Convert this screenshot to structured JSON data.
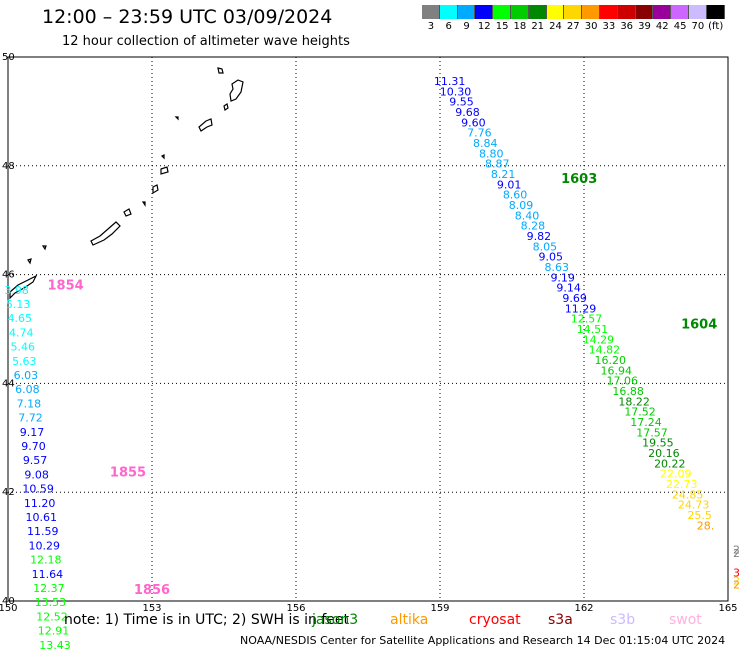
{
  "header": {
    "title": "12:00 – 23:59 UTC 03/09/2024",
    "subtitle": "12 hour collection of altimeter wave heights"
  },
  "colorbar": {
    "colors": [
      "#808080",
      "#00ffff",
      "#00aaff",
      "#0000ff",
      "#00ff00",
      "#00cc00",
      "#008800",
      "#ffff00",
      "#ffd700",
      "#ff9900",
      "#ff0000",
      "#cc0000",
      "#880000",
      "#990099",
      "#cc66ff",
      "#ccbbff",
      "#000000"
    ],
    "labels": [
      "3",
      "6",
      "9",
      "12",
      "15",
      "18",
      "21",
      "24",
      "27",
      "30",
      "33",
      "36",
      "39",
      "42",
      "45",
      "70",
      "(ft)"
    ]
  },
  "axes": {
    "lon_ticks": [
      "150",
      "153",
      "156",
      "159",
      "162",
      "165"
    ],
    "lat_ticks": [
      "50",
      "48",
      "46",
      "44",
      "42",
      "40"
    ]
  },
  "tracks": [
    {
      "lon_start": 159.2,
      "lat_start": 49.56,
      "lon_step": 0.124,
      "lat_step": -0.19,
      "values": [
        "11.31",
        "10.30",
        "9.55",
        "9.68",
        "9.60",
        "7.76",
        "8.84",
        "8.80",
        "8.87",
        "8.21",
        "9.01",
        "8.60",
        "8.09",
        "8.40",
        "8.28",
        "9.82",
        "8.05",
        "9.05",
        "8.63",
        "9.19",
        "9.14",
        "9.69",
        "11.29",
        "12.57",
        "14.51",
        "14.29",
        "14.82",
        "16.20",
        "16.94",
        "17.06",
        "16.88",
        "18.22",
        "17.52",
        "17.24",
        "17.57",
        "19.55",
        "20.16",
        "20.22",
        "22.09",
        "22.73",
        "24.85",
        "24.73",
        "25.5",
        "28."
      ]
    },
    {
      "lon_start": 150.18,
      "lat_start": 45.72,
      "lon_step": 0.032,
      "lat_step": -0.261,
      "values": [
        "3.98",
        "5.13",
        "4.65",
        "4.74",
        "5.46",
        "5.63",
        "6.03",
        "6.08",
        "7.18",
        "7.72",
        "9.17",
        "9.70",
        "9.57",
        "9.08",
        "10.59",
        "11.20",
        "10.61",
        "11.59",
        "10.29",
        "12.18",
        "11.64",
        "12.37",
        "13.53",
        "12.52",
        "12.91",
        "13.43"
      ]
    }
  ],
  "edge_values": [
    "2",
    "2",
    "31",
    "26",
    "27"
  ],
  "times": [
    {
      "text": "1603",
      "lon": 161.9,
      "lat": 47.78,
      "color": "#008800"
    },
    {
      "text": "1604",
      "lon": 164.4,
      "lat": 45.1,
      "color": "#008800"
    },
    {
      "text": "1854",
      "lon": 151.2,
      "lat": 45.82,
      "color": "#ff66cc"
    },
    {
      "text": "1855",
      "lon": 152.5,
      "lat": 42.38,
      "color": "#ff66cc"
    },
    {
      "text": "1856",
      "lon": 153.0,
      "lat": 40.22,
      "color": "#ff66cc"
    }
  ],
  "note": "note:  1) Time is in UTC; 2) SWH is in feet",
  "satellites": [
    {
      "name": "jason3",
      "color": "#008800"
    },
    {
      "name": "altika",
      "color": "#ff9900"
    },
    {
      "name": "cryosat",
      "color": "#ff0000"
    },
    {
      "name": "s3a",
      "color": "#880000"
    },
    {
      "name": "s3b",
      "color": "#ccbbff"
    },
    {
      "name": "swot",
      "color": "#ffb0e0"
    }
  ],
  "credit": "NOAA/NESDIS Center for Satellite Applications and Research    14 Dec 01:15:04 UTC 2024"
}
